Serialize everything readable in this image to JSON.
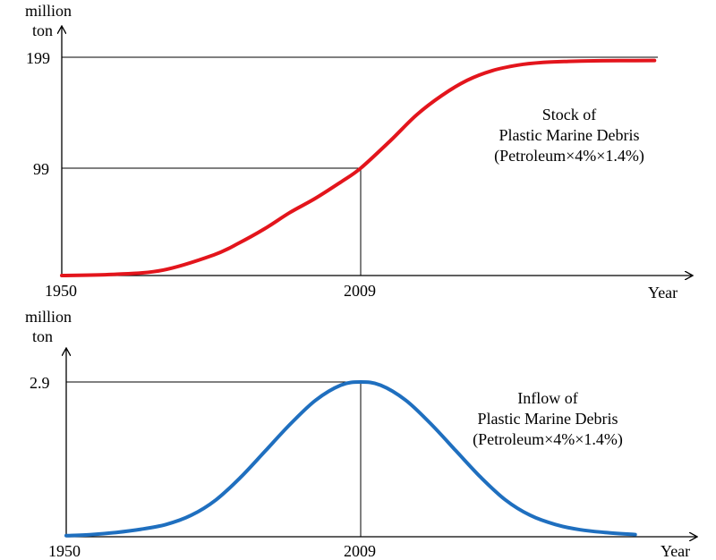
{
  "chart_data": [
    {
      "type": "line",
      "unit_label_line1": "million",
      "unit_label_line2": "ton",
      "xlabel": "Year",
      "x_ticks": [
        "1950",
        "2009"
      ],
      "y_ticks": [
        "99",
        "199"
      ],
      "xlim": [
        1950,
        2070
      ],
      "ylim": [
        0,
        210
      ],
      "ref_points": [
        {
          "x": 2009,
          "y": 99
        }
      ],
      "ref_line_y": 199,
      "annotation": [
        "Stock of",
        "Plastic Marine Debris",
        "(Petroleum×4%×1.4%)"
      ],
      "color": "#e3151c",
      "series": [
        {
          "x": [
            1950,
            1960,
            1970,
            1980,
            1985,
            1990,
            1995,
            2000,
            2005,
            2009,
            2015,
            2020,
            2025,
            2030,
            2035,
            2040,
            2045,
            2050,
            2055,
            2060,
            2067
          ],
          "values": [
            0,
            1,
            5,
            19,
            30,
            43,
            58,
            71,
            86,
            99,
            125,
            148,
            166,
            180,
            189,
            194,
            196.5,
            197.5,
            198,
            198.2,
            198.3
          ]
        }
      ]
    },
    {
      "type": "line",
      "unit_label_line1": "million",
      "unit_label_line2": "ton",
      "xlabel": "Year",
      "x_ticks": [
        "1950",
        "2009"
      ],
      "y_ticks": [
        "2.9"
      ],
      "xlim": [
        1950,
        2070
      ],
      "ylim": [
        0,
        3.25
      ],
      "ref_points": [
        {
          "x": 2009,
          "y": 2.9
        }
      ],
      "annotation": [
        "Inflow of",
        "Plastic Marine Debris",
        "(Petroleum×4%×1.4%)"
      ],
      "color": "#1f6fbf",
      "series": [
        {
          "x": [
            1950,
            1955,
            1960,
            1965,
            1970,
            1975,
            1980,
            1985,
            1990,
            1995,
            2000,
            2005,
            2009,
            2013,
            2018,
            2023,
            2028,
            2033,
            2038,
            2043,
            2048,
            2053,
            2058,
            2064
          ],
          "values": [
            0.02,
            0.04,
            0.08,
            0.14,
            0.23,
            0.4,
            0.69,
            1.12,
            1.62,
            2.12,
            2.56,
            2.84,
            2.9,
            2.84,
            2.56,
            2.12,
            1.62,
            1.12,
            0.69,
            0.4,
            0.23,
            0.13,
            0.08,
            0.04
          ]
        }
      ]
    }
  ]
}
